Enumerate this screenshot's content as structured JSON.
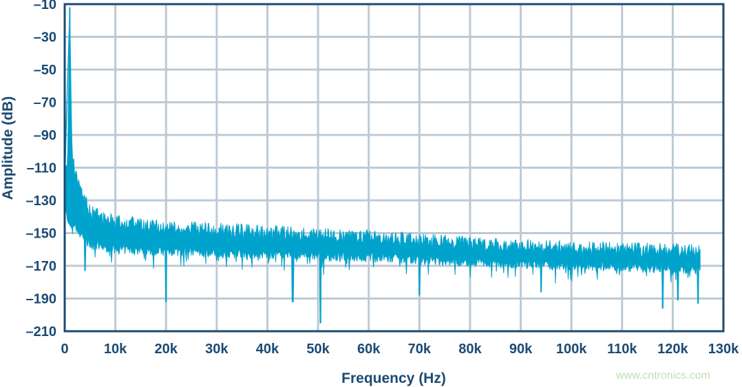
{
  "chart_data": {
    "type": "area",
    "xlabel": "Frequency (Hz)",
    "ylabel": "Amplitude (dB)",
    "xlim": [
      0,
      130000
    ],
    "ylim": [
      -210,
      -10
    ],
    "xticks": [
      0,
      10000,
      20000,
      30000,
      40000,
      50000,
      60000,
      70000,
      80000,
      90000,
      100000,
      110000,
      120000,
      130000
    ],
    "xtick_labels": [
      "0",
      "10k",
      "20k",
      "30k",
      "40k",
      "50k",
      "60k",
      "70k",
      "80k",
      "90k",
      "100k",
      "110k",
      "120k",
      "130k"
    ],
    "yticks": [
      -10,
      -30,
      -50,
      -70,
      -90,
      -110,
      -130,
      -150,
      -170,
      -190,
      -210
    ],
    "ytick_labels": [
      "–10",
      "–30",
      "–50",
      "–70",
      "–90",
      "–110",
      "–130",
      "–150",
      "–170",
      "–190",
      "–210"
    ],
    "grid": true,
    "color": "#00a3cc",
    "series": [
      {
        "peak": {
          "x": 1000,
          "y": -12
        },
        "upper_envelope": [
          [
            0,
            -110
          ],
          [
            600,
            -100
          ],
          [
            1000,
            -12
          ],
          [
            1400,
            -95
          ],
          [
            2000,
            -108
          ],
          [
            3000,
            -118
          ],
          [
            5000,
            -133
          ],
          [
            10000,
            -139
          ],
          [
            20000,
            -142
          ],
          [
            40000,
            -145
          ],
          [
            60000,
            -148
          ],
          [
            80000,
            -152
          ],
          [
            100000,
            -155
          ],
          [
            120000,
            -156
          ],
          [
            125500,
            -157
          ]
        ],
        "lower_envelope": [
          [
            0,
            -140
          ],
          [
            2000,
            -150
          ],
          [
            5000,
            -160
          ],
          [
            10000,
            -163
          ],
          [
            30000,
            -165
          ],
          [
            60000,
            -168
          ],
          [
            90000,
            -172
          ],
          [
            125500,
            -175
          ]
        ],
        "spurs": [
          [
            4000,
            -173
          ],
          [
            20000,
            -192
          ],
          [
            45000,
            -192
          ],
          [
            50500,
            -205
          ],
          [
            70000,
            -188
          ],
          [
            94000,
            -186
          ],
          [
            118000,
            -196
          ],
          [
            121000,
            -191
          ],
          [
            125000,
            -193
          ]
        ]
      }
    ]
  },
  "watermark": "www.cntronics.com"
}
